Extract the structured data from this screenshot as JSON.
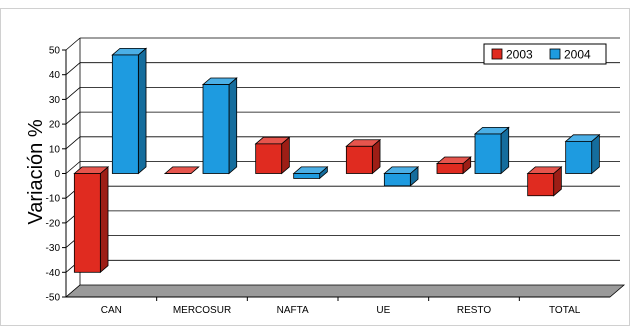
{
  "chart_data": {
    "type": "bar",
    "title": "",
    "xlabel": "",
    "ylabel": "Variación %",
    "ylim": [
      -50,
      50
    ],
    "ytick_step": 10,
    "categories": [
      "CAN",
      "MERCOSUR",
      "NAFTA",
      "UE",
      "RESTO",
      "TOTAL"
    ],
    "series": [
      {
        "name": "2003",
        "color": "#E02B20",
        "values": [
          -40,
          0,
          12,
          11,
          4,
          -9
        ]
      },
      {
        "name": "2004",
        "color": "#1E9BE0",
        "values": [
          48,
          36,
          -2,
          -5,
          16,
          13
        ]
      }
    ],
    "grid": true,
    "style": "3d",
    "floor_color": "#9A9A9A",
    "legend_position": "top-right"
  }
}
